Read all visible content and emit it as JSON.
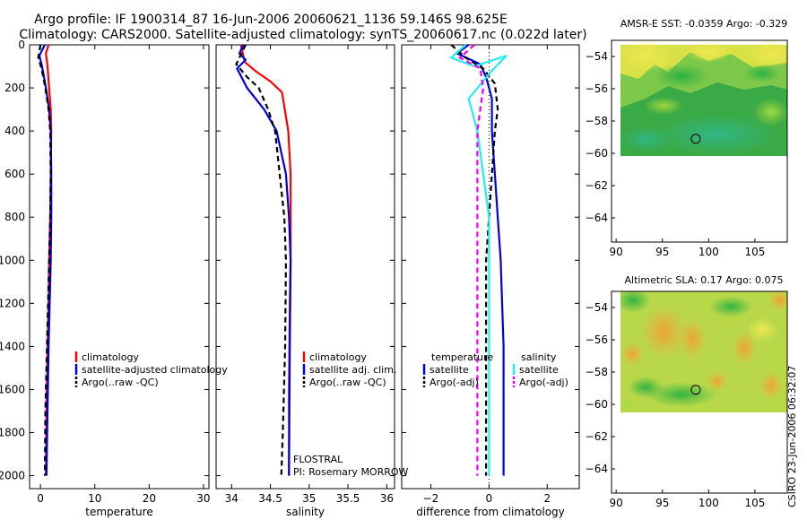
{
  "title": {
    "line1": "Argo profile: IF 1900314_87 16-Jun-2006 20060621_1136 59.146S 98.625E",
    "line2": "Climatology: CARS2000. Satellite-adjusted climatology: synTS_20060617.nc (0.022d later)"
  },
  "colors": {
    "climatology": "#ff0000",
    "satellite": "#0000dd",
    "argo": "#000000",
    "temp_diff": "#0000dd",
    "sal_sat": "#22eeee",
    "sal_argo": "#ee00ee"
  },
  "annotations": {
    "flostral": "FLOSTRAL",
    "pi": "PI: Rosemary MORROW",
    "stamp": "CSIRO 23-Jun-2006 06:32:07"
  },
  "chart_data": [
    {
      "type": "line",
      "xlabel": "temperature",
      "xlim": [
        -2,
        31
      ],
      "xticks": [
        0,
        10,
        20,
        30
      ],
      "ylim": [
        0,
        2060
      ],
      "yticks": [
        0,
        200,
        400,
        600,
        800,
        1000,
        1200,
        1400,
        1600,
        1800,
        2000
      ],
      "y_reversed": true,
      "legend": [
        "climatology",
        "satellite-adjusted climatology",
        "Argo(..raw -QC)"
      ],
      "series": [
        {
          "name": "climatology",
          "color": "#ff0000",
          "dash": "",
          "x": [
            1.5,
            1.0,
            1.3,
            1.6,
            1.9,
            2.0,
            1.9,
            1.8,
            1.6,
            1.5,
            1.3,
            1.1,
            1.0
          ],
          "y": [
            0,
            40,
            100,
            200,
            300,
            400,
            600,
            800,
            1000,
            1200,
            1400,
            1700,
            2000
          ]
        },
        {
          "name": "satellite-adjusted climatology",
          "color": "#0000dd",
          "dash": "",
          "x": [
            0.8,
            -0.2,
            0.3,
            1.0,
            1.6,
            1.9,
            2.0,
            2.0,
            1.9,
            1.7,
            1.5,
            1.3,
            1.1
          ],
          "y": [
            0,
            50,
            100,
            200,
            300,
            400,
            600,
            800,
            1000,
            1200,
            1400,
            1700,
            2000
          ]
        },
        {
          "name": "Argo(..raw -QC)",
          "color": "#000000",
          "dash": "6,4",
          "x": [
            0.0,
            -0.4,
            0.2,
            0.9,
            1.5,
            1.8,
            1.9,
            1.8,
            1.6,
            1.4,
            1.2,
            0.9,
            0.8
          ],
          "y": [
            0,
            60,
            110,
            200,
            300,
            400,
            600,
            800,
            1000,
            1200,
            1400,
            1700,
            2000
          ]
        }
      ]
    },
    {
      "type": "line",
      "xlabel": "salinity",
      "xlim": [
        33.8,
        36.1
      ],
      "xticks": [
        34,
        34.5,
        35,
        35.5,
        36
      ],
      "xticklabels": [
        "34",
        "34.5",
        "35",
        "35.5",
        "36"
      ],
      "ylim": [
        0,
        2060
      ],
      "y_reversed": true,
      "legend": [
        "climatology",
        "satellite adj. clim.",
        "Argo(..raw -QC)"
      ],
      "series": [
        {
          "name": "climatology",
          "color": "#ff0000",
          "dash": "",
          "x": [
            34.12,
            34.17,
            34.3,
            34.5,
            34.65,
            34.73,
            34.76,
            34.76,
            34.76,
            34.75,
            34.74,
            34.74
          ],
          "y": [
            0,
            80,
            120,
            170,
            220,
            400,
            600,
            800,
            1000,
            1200,
            1600,
            2000
          ]
        },
        {
          "name": "satellite adj. clim.",
          "color": "#0000dd",
          "dash": "",
          "x": [
            34.15,
            34.1,
            34.18,
            34.07,
            34.2,
            34.42,
            34.58,
            34.7,
            34.74,
            34.76,
            34.75,
            34.74
          ],
          "y": [
            0,
            40,
            70,
            110,
            200,
            300,
            400,
            600,
            800,
            1000,
            1400,
            2000
          ]
        },
        {
          "name": "Argo(..raw -QC)",
          "color": "#000000",
          "dash": "6,4",
          "x": [
            34.18,
            34.06,
            34.2,
            34.35,
            34.47,
            34.56,
            34.62,
            34.68,
            34.7,
            34.69,
            34.66,
            34.64
          ],
          "y": [
            0,
            90,
            150,
            200,
            300,
            400,
            600,
            800,
            1000,
            1400,
            1800,
            2000
          ]
        }
      ]
    },
    {
      "type": "line",
      "xlabel": "difference from climatology",
      "xlim": [
        -3,
        3.1
      ],
      "xticks": [
        -2,
        0,
        2
      ],
      "ylim": [
        0,
        2060
      ],
      "y_reversed": true,
      "legend_title_left": "temperature",
      "legend_title_right": "salinity",
      "legend": [
        "satellite",
        "Argo(-adj)",
        "satellite",
        "Argo(-adj)"
      ],
      "series": [
        {
          "name": "satellite",
          "color": "#0000dd",
          "dash": "",
          "x": [
            -0.7,
            -1.1,
            -0.3,
            -0.1,
            0.1,
            0.1,
            0.2,
            0.3,
            0.4,
            0.5,
            0.5
          ],
          "y": [
            0,
            40,
            90,
            150,
            250,
            400,
            600,
            800,
            1000,
            1400,
            2000
          ]
        },
        {
          "name": "Argo(-adj)",
          "color": "#000000",
          "dash": "6,4",
          "x": [
            -1.3,
            -0.8,
            -0.2,
            0.2,
            0.3,
            0.2,
            0.1,
            0.0,
            -0.1,
            -0.1,
            -0.1
          ],
          "y": [
            0,
            60,
            110,
            180,
            300,
            400,
            600,
            800,
            1000,
            1400,
            2000
          ]
        },
        {
          "name": "satellite",
          "color": "#22eeee",
          "dash": "",
          "x": [
            -0.8,
            -1.3,
            -0.5,
            0.6,
            0.1,
            -0.7,
            -0.4,
            -0.2,
            0.0,
            0.0,
            0.0
          ],
          "y": [
            0,
            60,
            100,
            50,
            120,
            250,
            400,
            600,
            800,
            1400,
            2000
          ]
        },
        {
          "name": "Argo(-adj)",
          "color": "#ee00ee",
          "dash": "6,4",
          "x": [
            -0.5,
            -1.0,
            -0.3,
            -0.2,
            -0.3,
            -0.4,
            -0.4,
            -0.4,
            -0.4,
            -0.4
          ],
          "y": [
            0,
            60,
            110,
            200,
            300,
            400,
            800,
            1200,
            1600,
            2000
          ]
        }
      ]
    },
    {
      "type": "heatmap",
      "title": "AMSR-E SST: -0.0359 Argo: -0.329",
      "xlim": [
        89.5,
        108.5
      ],
      "ylim": [
        -65.5,
        -53
      ],
      "xticks": [
        90,
        95,
        100,
        105
      ],
      "yticks": [
        -54,
        -56,
        -58,
        -60,
        -62,
        -64
      ],
      "data_extent": {
        "lon": [
          90,
          108.5
        ],
        "lat": [
          -60.1,
          -53
        ]
      },
      "marker": {
        "lon": 98.6,
        "lat": -59.1
      }
    },
    {
      "type": "heatmap",
      "title": "Altimetric SLA: 0.17 Argo: 0.075",
      "xlim": [
        89.5,
        108.5
      ],
      "ylim": [
        -65.5,
        -53
      ],
      "xticks": [
        90,
        95,
        100,
        105
      ],
      "yticks": [
        -54,
        -56,
        -58,
        -60,
        -62,
        -64
      ],
      "data_extent": {
        "lon": [
          90,
          108.5
        ],
        "lat": [
          -60.1,
          -53
        ]
      },
      "marker": {
        "lon": 98.6,
        "lat": -59.1
      }
    }
  ]
}
